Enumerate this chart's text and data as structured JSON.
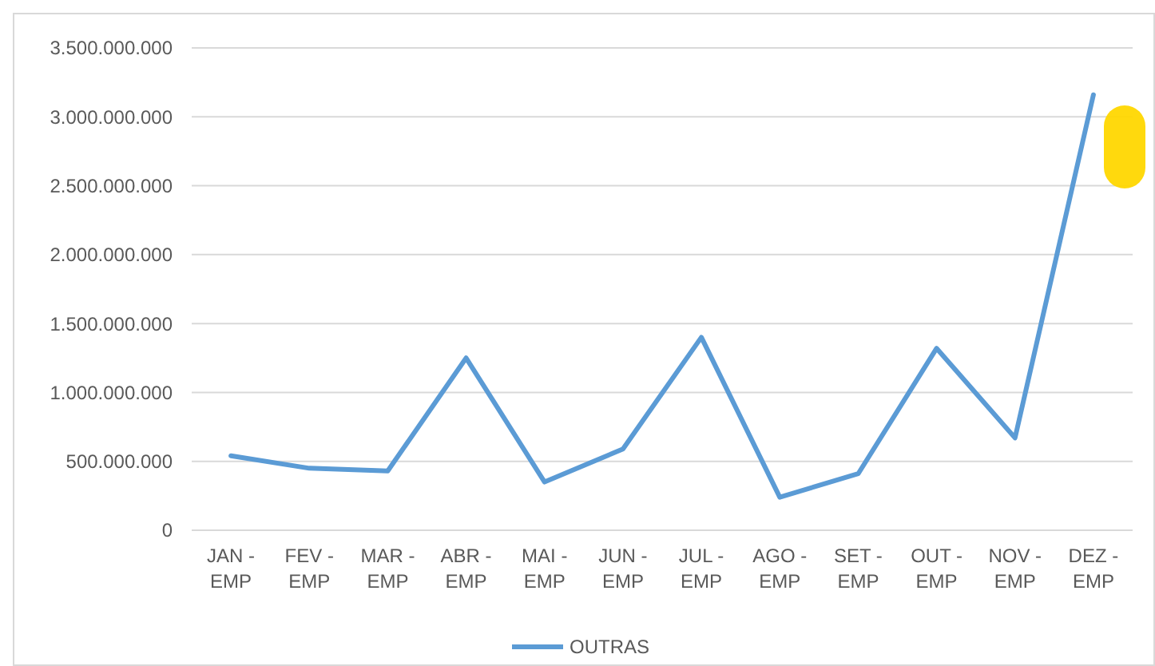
{
  "chart_data": {
    "type": "line",
    "categories": [
      "JAN - EMP",
      "FEV - EMP",
      "MAR - EMP",
      "ABR - EMP",
      "MAI - EMP",
      "JUN - EMP",
      "JUL - EMP",
      "AGO - EMP",
      "SET - EMP",
      "OUT - EMP",
      "NOV - EMP",
      "DEZ - EMP"
    ],
    "series": [
      {
        "name": "OUTRAS",
        "color": "#5b9bd5",
        "values": [
          540000000,
          450000000,
          430000000,
          1250000000,
          350000000,
          590000000,
          1400000000,
          240000000,
          410000000,
          1320000000,
          670000000,
          3160000000
        ]
      }
    ],
    "ylim": [
      0,
      3500000000
    ],
    "yticks": [
      0,
      {
        "value": 500000000,
        "label": "500.000.000"
      },
      {
        "value": 1000000000,
        "label": "1.000.000.000"
      },
      {
        "value": 1500000000,
        "label": "1.500.000.000"
      },
      {
        "value": 2000000000,
        "label": "2.000.000.000"
      },
      {
        "value": 2500000000,
        "label": "2.500.000.000"
      },
      {
        "value": 3000000000,
        "label": "3.000.000.000"
      },
      {
        "value": 3500000000,
        "label": "3.500.000.000"
      }
    ],
    "grid": "y",
    "legend": "bottom",
    "marker": "none",
    "line_style": "solid"
  }
}
